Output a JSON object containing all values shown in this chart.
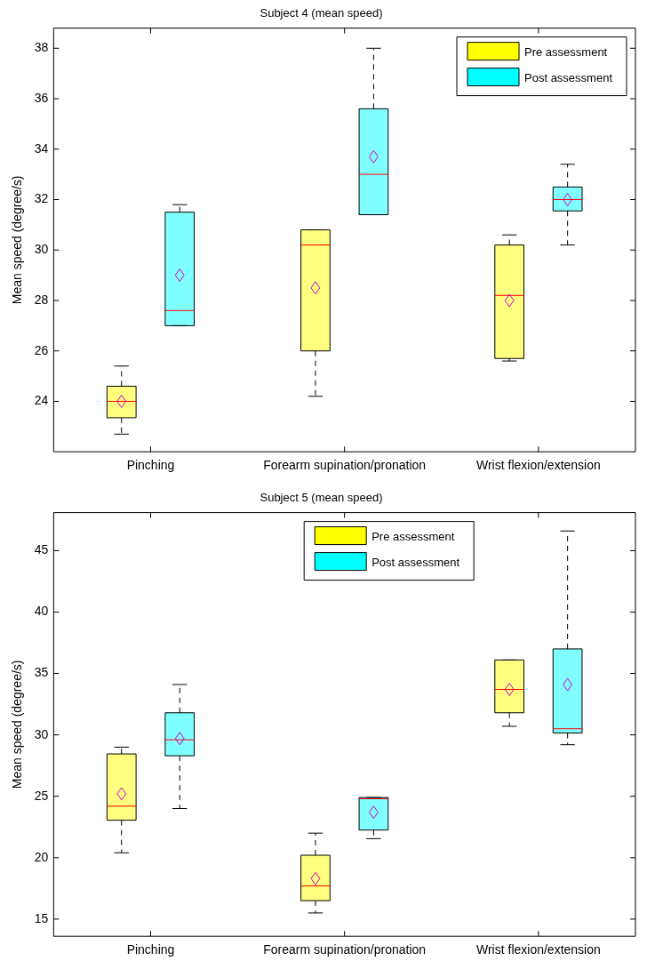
{
  "chart_data": [
    {
      "type": "box",
      "title": "Subject 4 (mean speed)",
      "ylabel": "Mean speed (degree/s)",
      "categories": [
        "Pinching",
        "Forearm supination/pronation",
        "Wrist flexion/extension"
      ],
      "ylim": [
        22,
        38.8
      ],
      "yticks": [
        24,
        26,
        28,
        30,
        32,
        34,
        36,
        38
      ],
      "grid": false,
      "legend": "top right",
      "series": [
        {
          "name": "Pre assessment",
          "color": "#ffff00",
          "boxes": [
            {
              "low": 22.7,
              "q1": 23.35,
              "median": 24.0,
              "q3": 24.6,
              "high": 25.4,
              "mean": 24.0
            },
            {
              "low": 24.2,
              "q1": 26.0,
              "median": 30.2,
              "q3": 30.8,
              "high": 30.8,
              "mean": 28.5
            },
            {
              "low": 25.6,
              "q1": 25.7,
              "median": 28.2,
              "q3": 30.2,
              "high": 30.6,
              "mean": 28.0
            }
          ]
        },
        {
          "name": "Post assessment",
          "color": "#00ffff",
          "boxes": [
            {
              "low": 27.0,
              "q1": 27.0,
              "median": 27.6,
              "q3": 31.5,
              "high": 31.8,
              "mean": 29.0
            },
            {
              "low": 31.4,
              "q1": 31.4,
              "median": 33.0,
              "q3": 35.6,
              "high": 38.0,
              "mean": 33.7
            },
            {
              "low": 30.2,
              "q1": 31.55,
              "median": 32.0,
              "q3": 32.5,
              "high": 33.4,
              "mean": 32.0
            }
          ]
        }
      ]
    },
    {
      "type": "box",
      "title": "Subject 5 (mean speed)",
      "ylabel": "Mean speed (degree/s)",
      "categories": [
        "Pinching",
        "Forearm supination/pronation",
        "Wrist flexion/extension"
      ],
      "ylim": [
        13.6,
        48.1
      ],
      "yticks": [
        15,
        20,
        25,
        30,
        35,
        40,
        45
      ],
      "grid": false,
      "legend": "top",
      "series": [
        {
          "name": "Pre assessment",
          "color": "#ffff00",
          "boxes": [
            {
              "low": 20.4,
              "q1": 23.05,
              "median": 24.2,
              "q3": 28.45,
              "high": 29.0,
              "mean": 25.2
            },
            {
              "low": 15.5,
              "q1": 16.5,
              "median": 17.7,
              "q3": 20.2,
              "high": 22.0,
              "mean": 18.3
            },
            {
              "low": 30.7,
              "q1": 31.8,
              "median": 33.7,
              "q3": 36.1,
              "high": 36.1,
              "mean": 33.7
            }
          ]
        },
        {
          "name": "Post assessment",
          "color": "#00ffff",
          "boxes": [
            {
              "low": 24.0,
              "q1": 28.3,
              "median": 29.6,
              "q3": 31.8,
              "high": 34.1,
              "mean": 29.7
            },
            {
              "low": 21.55,
              "q1": 22.25,
              "median": 24.8,
              "q3": 24.9,
              "high": 24.9,
              "mean": 23.7
            },
            {
              "low": 29.2,
              "q1": 30.15,
              "median": 30.5,
              "q3": 37.0,
              "high": 46.6,
              "mean": 34.1
            }
          ]
        }
      ]
    }
  ]
}
